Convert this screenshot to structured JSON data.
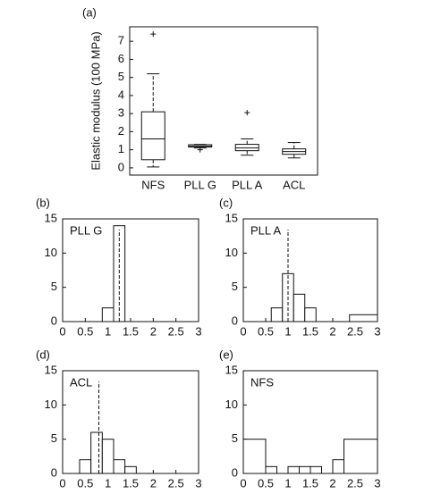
{
  "chart_data": [
    {
      "type": "box",
      "panel_label": "(a)",
      "ylabel": "Elastic modulus  (100 MPa)",
      "categories": [
        "NFS",
        "PLL G",
        "PLL A",
        "ACL"
      ],
      "boxes": [
        {
          "min": 0.05,
          "q1": 0.45,
          "median": 1.6,
          "q3": 3.1,
          "max": 5.2,
          "outliers": [
            7.4
          ]
        },
        {
          "min": 1.1,
          "q1": 1.15,
          "median": 1.2,
          "q3": 1.28,
          "max": 1.3,
          "outliers": [
            1.0
          ]
        },
        {
          "min": 0.7,
          "q1": 0.95,
          "median": 1.1,
          "q3": 1.3,
          "max": 1.6,
          "outliers": [
            3.05
          ]
        },
        {
          "min": 0.55,
          "q1": 0.75,
          "median": 0.9,
          "q3": 1.05,
          "max": 1.4,
          "outliers": []
        }
      ],
      "ylim": [
        -0.4,
        7.8
      ],
      "yticks": [
        0,
        1,
        2,
        3,
        4,
        5,
        6,
        7
      ]
    },
    {
      "type": "histogram",
      "panel_label": "(b)",
      "label": "PLL G",
      "bins": [
        0.875,
        1.125,
        1.375
      ],
      "counts": [
        2,
        14
      ],
      "mean": 1.25,
      "xlim": [
        0,
        3
      ],
      "xticks": [
        0,
        0.5,
        1,
        1.5,
        2,
        2.5,
        3
      ],
      "ylim": [
        0,
        15
      ],
      "yticks": [
        0,
        5,
        10,
        15
      ]
    },
    {
      "type": "histogram",
      "panel_label": "(c)",
      "label": "PLL A",
      "bins": [
        0.625,
        0.875,
        1.125,
        1.375,
        1.625,
        2.375,
        3.0
      ],
      "counts": [
        2,
        7,
        4,
        2,
        0,
        1
      ],
      "mean": 1.0,
      "xlim": [
        0,
        3
      ],
      "xticks": [
        0,
        0.5,
        1,
        1.5,
        2,
        2.5,
        3
      ],
      "ylim": [
        0,
        15
      ],
      "yticks": [
        0,
        5,
        10,
        15
      ]
    },
    {
      "type": "histogram",
      "panel_label": "(d)",
      "label": "ACL",
      "bins": [
        0.375,
        0.625,
        0.875,
        1.125,
        1.375,
        1.625
      ],
      "counts": [
        2,
        6,
        5,
        2,
        1
      ],
      "mean": 0.8,
      "xlim": [
        0,
        3
      ],
      "xticks": [
        0,
        0.5,
        1,
        1.5,
        2,
        2.5,
        3
      ],
      "ylim": [
        0,
        15
      ],
      "yticks": [
        0,
        5,
        10,
        15
      ]
    },
    {
      "type": "histogram",
      "panel_label": "(e)",
      "label": "NFS",
      "bins": [
        0,
        0.5,
        0.75,
        1.0,
        1.25,
        1.5,
        1.75,
        2.0,
        2.25,
        3.0
      ],
      "counts": [
        5,
        1,
        0,
        1,
        1,
        1,
        0,
        2,
        5
      ],
      "xlim": [
        0,
        3
      ],
      "xticks": [
        0,
        0.5,
        1,
        1.5,
        2,
        2.5,
        3
      ],
      "ylim": [
        0,
        15
      ],
      "yticks": [
        0,
        5,
        10,
        15
      ]
    }
  ]
}
